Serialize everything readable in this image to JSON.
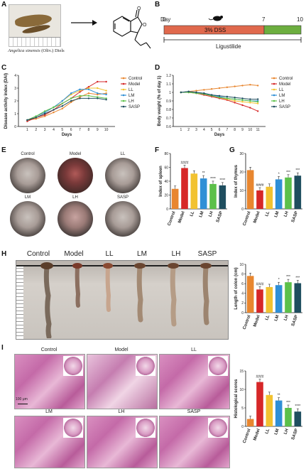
{
  "panels": {
    "A": "A",
    "B": "B",
    "C": "C",
    "D": "D",
    "E": "E",
    "F": "F",
    "G": "G",
    "H": "H",
    "I": "I"
  },
  "panelA": {
    "species": "Angelica sinensis",
    "author": "(Oliv.) Diels"
  },
  "panelB": {
    "day_label": "Day",
    "d0": "0",
    "d7": "7",
    "d10": "10",
    "dss": "3% DSS",
    "drug": "Ligustilide",
    "dss_color": "#e0694d",
    "drug_color": "#6cae3f"
  },
  "groups": [
    "Control",
    "Model",
    "LL",
    "LM",
    "LH",
    "SASP"
  ],
  "colors": {
    "Control": "#e8862f",
    "Model": "#d62728",
    "LL": "#f2c230",
    "LM": "#2f8fd6",
    "LH": "#5cc04a",
    "SASP": "#1f4e5f"
  },
  "chart_data": [
    {
      "type": "line",
      "panel": "C",
      "ylabel": "Disease activity index (DAI)",
      "xlabel": "Days",
      "x": [
        1,
        2,
        3,
        4,
        5,
        6,
        7,
        8,
        9,
        10
      ],
      "ylim": [
        0,
        4
      ],
      "yticks": [
        0,
        1,
        2,
        3,
        4
      ],
      "series": [
        {
          "name": "Control",
          "values": [
            0.5,
            0.6,
            0.8,
            1.1,
            1.4,
            1.9,
            2.3,
            2.6,
            2.5,
            2.6
          ]
        },
        {
          "name": "Model",
          "values": [
            0.4,
            0.7,
            0.9,
            1.3,
            1.8,
            2.2,
            2.7,
            3.1,
            3.5,
            3.5
          ]
        },
        {
          "name": "LL",
          "values": [
            0.5,
            0.8,
            1.1,
            1.5,
            2.0,
            2.5,
            2.8,
            3.0,
            3.0,
            2.8
          ]
        },
        {
          "name": "LM",
          "values": [
            0.5,
            0.8,
            1.1,
            1.5,
            2.0,
            2.6,
            2.9,
            2.9,
            2.6,
            2.5
          ]
        },
        {
          "name": "LH",
          "values": [
            0.5,
            0.8,
            1.2,
            1.5,
            1.8,
            2.2,
            2.4,
            2.4,
            2.3,
            2.2
          ]
        },
        {
          "name": "SASP",
          "values": [
            0.5,
            0.7,
            1.0,
            1.3,
            1.6,
            2.0,
            2.2,
            2.2,
            2.2,
            2.1
          ]
        }
      ]
    },
    {
      "type": "line",
      "panel": "D",
      "ylabel": "Body weight (% of day 1)",
      "xlabel": "Days",
      "x": [
        1,
        2,
        3,
        4,
        5,
        6,
        7,
        8,
        9,
        10,
        11
      ],
      "ylim": [
        0.6,
        1.2
      ],
      "yticks": [
        0.6,
        0.7,
        0.8,
        0.9,
        1.0,
        1.1,
        1.2
      ],
      "series": [
        {
          "name": "Control",
          "values": [
            1.0,
            1.01,
            1.02,
            1.03,
            1.04,
            1.05,
            1.06,
            1.07,
            1.08,
            1.09,
            1.08
          ]
        },
        {
          "name": "Model",
          "values": [
            1.0,
            1.0,
            0.99,
            0.97,
            0.95,
            0.93,
            0.91,
            0.88,
            0.85,
            0.82,
            0.78
          ]
        },
        {
          "name": "LL",
          "values": [
            1.0,
            1.0,
            0.99,
            0.98,
            0.96,
            0.94,
            0.92,
            0.9,
            0.89,
            0.88,
            0.87
          ]
        },
        {
          "name": "LM",
          "values": [
            1.0,
            1.01,
            1.0,
            0.99,
            0.97,
            0.95,
            0.93,
            0.92,
            0.91,
            0.9,
            0.9
          ]
        },
        {
          "name": "LH",
          "values": [
            1.0,
            1.0,
            0.99,
            0.98,
            0.96,
            0.94,
            0.93,
            0.92,
            0.91,
            0.9,
            0.89
          ]
        },
        {
          "name": "SASP",
          "values": [
            1.0,
            1.01,
            1.0,
            0.99,
            0.97,
            0.96,
            0.95,
            0.94,
            0.93,
            0.92,
            0.92
          ]
        }
      ]
    },
    {
      "type": "bar",
      "panel": "F",
      "ylabel": "Index of spleen",
      "categories": [
        "Control",
        "Model",
        "LL",
        "LM",
        "LH",
        "SASP"
      ],
      "values": [
        29,
        59,
        51,
        44,
        36,
        34
      ],
      "ylim": [
        0,
        80
      ],
      "yticks": [
        0,
        20,
        40,
        60,
        80
      ],
      "sig": [
        "",
        "####",
        "",
        "**",
        "****",
        "****"
      ]
    },
    {
      "type": "bar",
      "panel": "G",
      "ylabel": "Index of thymus",
      "categories": [
        "Control",
        "Model",
        "LL",
        "LM",
        "LH",
        "SASP"
      ],
      "values": [
        21,
        10,
        12,
        16,
        17,
        18
      ],
      "ylim": [
        0,
        30
      ],
      "yticks": [
        0,
        10,
        20,
        30
      ],
      "sig": [
        "",
        "####",
        "",
        "*",
        "***",
        "***"
      ]
    },
    {
      "type": "bar",
      "panel": "H",
      "ylabel": "Length of colon (cm)",
      "categories": [
        "Control",
        "Model",
        "LL",
        "LM",
        "LH",
        "SASP"
      ],
      "values": [
        7.6,
        4.8,
        5.3,
        5.7,
        6.3,
        6.1
      ],
      "ylim": [
        0,
        10
      ],
      "yticks": [
        0,
        2,
        4,
        6,
        8,
        10
      ],
      "sig": [
        "",
        "####",
        "",
        "*",
        "***",
        "***"
      ]
    },
    {
      "type": "bar",
      "panel": "I",
      "ylabel": "Histological scores",
      "categories": [
        "Control",
        "Model",
        "LL",
        "LM",
        "LH",
        "SASP"
      ],
      "values": [
        2,
        12,
        8.5,
        7,
        5,
        4
      ],
      "ylim": [
        0,
        15
      ],
      "yticks": [
        0,
        5,
        10,
        15
      ],
      "sig": [
        "",
        "####",
        "",
        "**",
        "***",
        "****"
      ]
    }
  ],
  "panelE": {
    "labels": [
      "Control",
      "Model",
      "LL",
      "LM",
      "LH",
      "SASP"
    ]
  },
  "panelH": {
    "labels": [
      "Control",
      "Model",
      "LL",
      "LM",
      "LH",
      "SASP"
    ]
  },
  "panelI": {
    "labels": [
      "Control",
      "Model",
      "LL",
      "LM",
      "LH",
      "SASP"
    ],
    "scale": "100 μm"
  }
}
